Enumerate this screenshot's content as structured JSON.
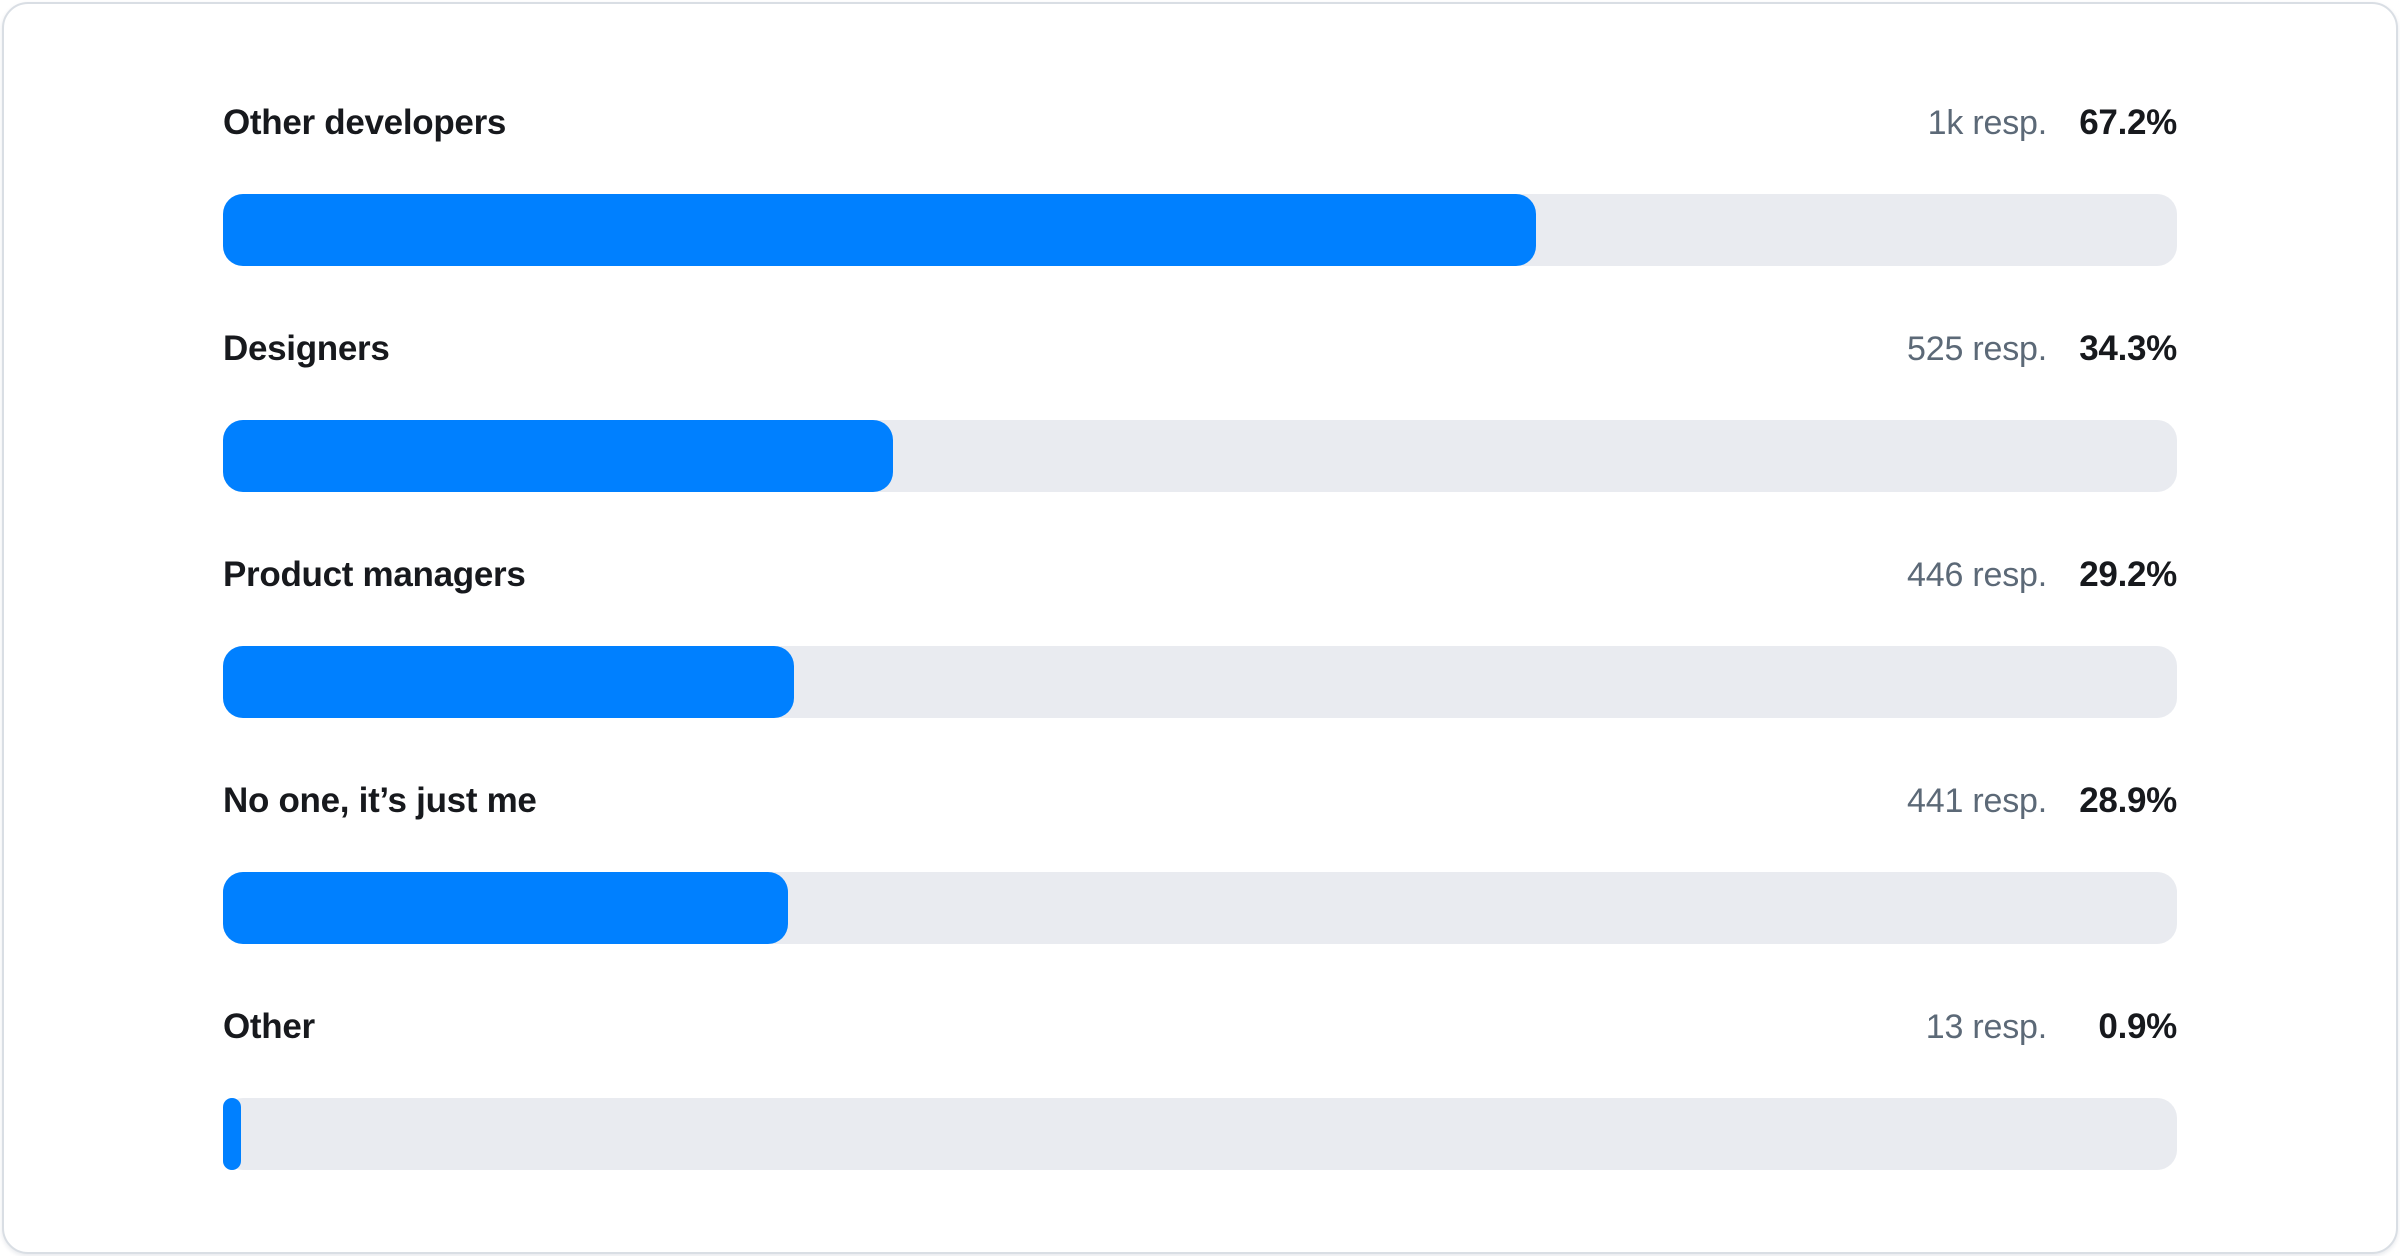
{
  "colors": {
    "bar_fill": "#0080ff",
    "bar_track": "#e9ebf0",
    "label_text": "#17191d",
    "responses_text": "#5c6977",
    "percent_text": "#17191d",
    "card_border": "#d9dee4",
    "background": "#ffffff"
  },
  "chart_data": {
    "type": "bar",
    "orientation": "horizontal",
    "title": "",
    "xlabel": "",
    "ylabel": "",
    "xlim": [
      0,
      100
    ],
    "grid": false,
    "legend": "none",
    "categories": [
      "Other developers",
      "Designers",
      "Product managers",
      "No one, it’s just me",
      "Other"
    ],
    "values": [
      67.2,
      34.3,
      29.2,
      28.9,
      0.9
    ],
    "value_labels": [
      "67.2%",
      "34.3%",
      "29.2%",
      "28.9%",
      "0.9%"
    ],
    "response_labels": [
      "1k resp.",
      "525 resp.",
      "446 resp.",
      "441 resp.",
      "13 resp."
    ]
  },
  "rows": [
    {
      "label": "Other developers",
      "responses": "1k resp.",
      "percent": "67.2%",
      "value": 67.2
    },
    {
      "label": "Designers",
      "responses": "525 resp.",
      "percent": "34.3%",
      "value": 34.3
    },
    {
      "label": "Product managers",
      "responses": "446 resp.",
      "percent": "29.2%",
      "value": 29.2
    },
    {
      "label": "No one, it’s just me",
      "responses": "441 resp.",
      "percent": "28.9%",
      "value": 28.9
    },
    {
      "label": "Other",
      "responses": "13 resp.",
      "percent": "0.9%",
      "value": 0.9
    }
  ]
}
